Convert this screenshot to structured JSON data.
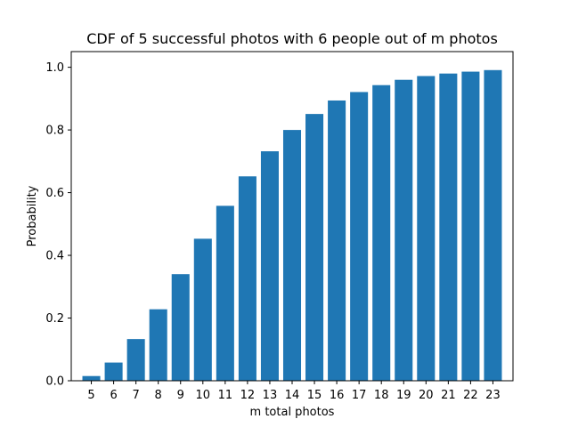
{
  "chart_data": {
    "type": "bar",
    "title": "CDF of 5 successful photos with 6 people out of m photos",
    "xlabel": "m total photos",
    "ylabel": "Probability",
    "categories": [
      "5",
      "6",
      "7",
      "8",
      "9",
      "10",
      "11",
      "12",
      "13",
      "14",
      "15",
      "16",
      "17",
      "18",
      "19",
      "20",
      "21",
      "22",
      "23"
    ],
    "values": [
      0.015,
      0.058,
      0.133,
      0.228,
      0.34,
      0.453,
      0.558,
      0.652,
      0.732,
      0.8,
      0.851,
      0.894,
      0.921,
      0.943,
      0.96,
      0.972,
      0.98,
      0.986,
      0.991
    ],
    "ylim": [
      0,
      1.05
    ],
    "yticks": [
      "0.0",
      "0.2",
      "0.4",
      "0.6",
      "0.8",
      "1.0"
    ],
    "bar_color": "#1f77b4",
    "grid": false
  }
}
